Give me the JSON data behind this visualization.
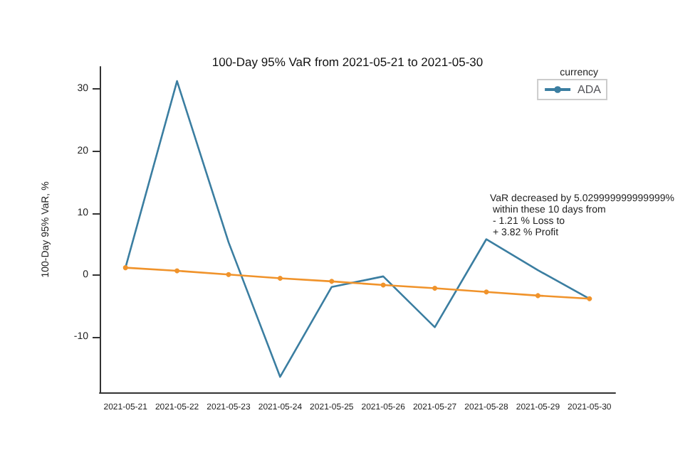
{
  "chart_data": {
    "type": "line",
    "title": "100-Day 95% VaR from 2021-05-21 to 2021-05-30",
    "ylabel": "100-Day 95% VaR, %",
    "legend_title": "currency",
    "categories": [
      "2021-05-21",
      "2021-05-22",
      "2021-05-23",
      "2021-05-24",
      "2021-05-25",
      "2021-05-26",
      "2021-05-27",
      "2021-05-28",
      "2021-05-29",
      "2021-05-30"
    ],
    "series": [
      {
        "name": "ADA",
        "color": "#3b7ea1",
        "marker": "none",
        "values": [
          1.2,
          31.3,
          5.3,
          -16.4,
          -1.9,
          -0.2,
          -8.4,
          5.8,
          0.8,
          -3.8
        ]
      },
      {
        "type": "line",
        "color": "#f0932b",
        "marker": "circle",
        "values": [
          1.2,
          0.7,
          0.1,
          -0.5,
          -1.0,
          -1.6,
          -2.1,
          -2.7,
          -3.3,
          -3.8
        ]
      }
    ],
    "ylim": [
      -18.9,
      33.6
    ],
    "yticks": [
      -10,
      0,
      10,
      20,
      30
    ],
    "grid": false,
    "legend": "top right",
    "annotations": [
      "VaR decreased by 5.029999999999999%\n within these 10 days from\n - 1.21 % Loss to\n + 3.82 % Profit"
    ]
  }
}
